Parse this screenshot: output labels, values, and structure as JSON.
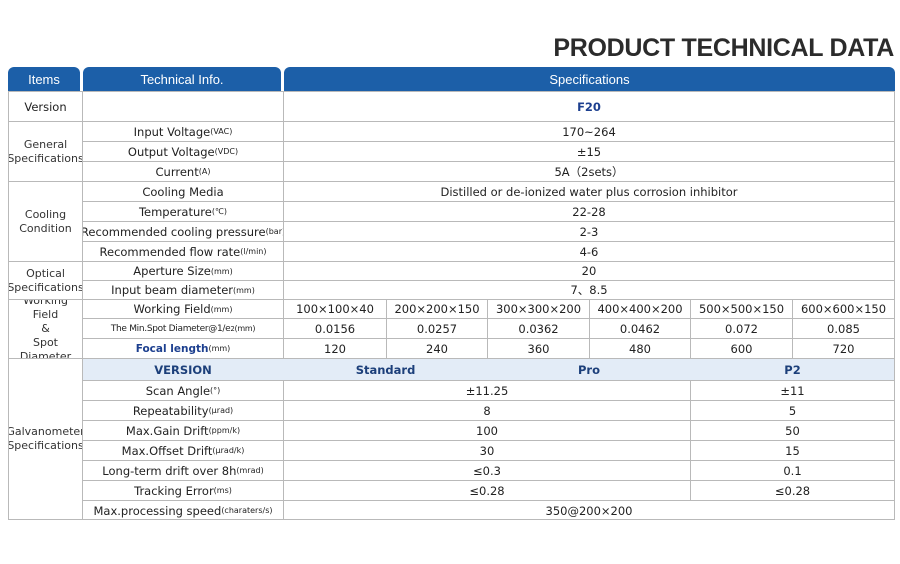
{
  "title": "PRODUCT TECHNICAL DATA",
  "header": {
    "items": "Items",
    "info": "Technical Info.",
    "specs": "Specifications"
  },
  "version_row": {
    "label": "Version",
    "model": "F20"
  },
  "general": {
    "group": "General\nSpecifications",
    "rows": [
      {
        "label": "Input Voltage",
        "unit": "(VAC)",
        "value": "170~264"
      },
      {
        "label": "Output Voltage",
        "unit": "(VDC)",
        "value": "±15"
      },
      {
        "label": "Current",
        "unit": "(A)",
        "value": "5A（2sets）"
      }
    ]
  },
  "cooling": {
    "group": "Cooling\nCondition",
    "rows": [
      {
        "label": "Cooling Media",
        "unit": "",
        "value": "Distilled or de-ionized water plus corrosion inhibitor"
      },
      {
        "label": "Temperature",
        "unit": "(℃)",
        "value": "22-28"
      },
      {
        "label": "Recommended cooling pressure",
        "unit": "(bar)",
        "value": "2-3"
      },
      {
        "label": "Recommended flow rate",
        "unit": "(l/min)",
        "value": "4-6"
      }
    ]
  },
  "optical": {
    "group": "Optical\nSpecifications",
    "rows": [
      {
        "label": "Aperture Size",
        "unit": "(mm)",
        "value": "20"
      },
      {
        "label": "Input beam diameter",
        "unit": "(mm)",
        "value": "7、8.5"
      }
    ]
  },
  "working": {
    "group": "Working Field\n&\nSpot Diameter",
    "field_label": "Working Field",
    "field_unit": "(mm)",
    "spot_label": "The Min.Spot Diameter@1/e",
    "spot_sup": "2",
    "spot_unit": "(mm)",
    "focal_label": "Focal length",
    "focal_unit": "(mm)",
    "fields": [
      "100×100×40",
      "200×200×150",
      "300×300×200",
      "400×400×200",
      "500×500×150",
      "600×600×150"
    ],
    "spots": [
      "0.0156",
      "0.0257",
      "0.0362",
      "0.0462",
      "0.072",
      "0.085"
    ],
    "focals": [
      "120",
      "240",
      "360",
      "480",
      "600",
      "720"
    ]
  },
  "galvo": {
    "group": "Galvanometer\nSpecifications",
    "version_label": "VERSION",
    "versions": [
      "Standard",
      "Pro",
      "P2"
    ],
    "rows": [
      {
        "label": "Scan Angle",
        "unit": "(°)",
        "std_pro": "±11.25",
        "p2": "±11"
      },
      {
        "label": "Repeatability",
        "unit": "(μrad)",
        "std_pro": "8",
        "p2": "5"
      },
      {
        "label": "Max.Gain Drift",
        "unit": "(ppm/k)",
        "std_pro": "100",
        "p2": "50"
      },
      {
        "label": "Max.Offset Drift",
        "unit": "(μrad/k)",
        "std_pro": "30",
        "p2": "15"
      },
      {
        "label": "Long-term drift over 8h",
        "unit": "(mrad)",
        "std_pro": "≤0.3",
        "p2": "0.1"
      },
      {
        "label": "Tracking Error",
        "unit": "(ms)",
        "std_pro": "≤0.28",
        "p2": "≤0.28"
      },
      {
        "label": "Max.processing speed",
        "unit": "(charaters/s)",
        "all": "350@200×200"
      }
    ]
  },
  "colors": {
    "header_blue": "#1c5fa8",
    "version_bar": "#e3ecf7",
    "label_blue": "#1c3f8f"
  }
}
